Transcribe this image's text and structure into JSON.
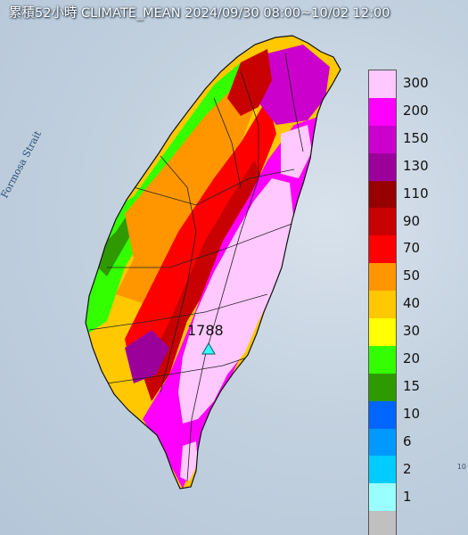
{
  "header": {
    "title": "累積52小時 CLIMATE_MEAN 2024/09/30 08:00~10/02 12:00"
  },
  "map_labels": {
    "strait": "Formosa Strait",
    "corner": "10"
  },
  "peak": {
    "value": "1788",
    "marker": "triangle-marker"
  },
  "legend": [
    {
      "label": "300",
      "color": "#ffc8ff"
    },
    {
      "label": "200",
      "color": "#ff00ff"
    },
    {
      "label": "150",
      "color": "#cc00cc"
    },
    {
      "label": "130",
      "color": "#9b009b"
    },
    {
      "label": "110",
      "color": "#960000"
    },
    {
      "label": "90",
      "color": "#c80000"
    },
    {
      "label": "70",
      "color": "#ff0000"
    },
    {
      "label": "50",
      "color": "#ff9600"
    },
    {
      "label": "40",
      "color": "#ffc800"
    },
    {
      "label": "30",
      "color": "#ffff00"
    },
    {
      "label": "20",
      "color": "#33ff00"
    },
    {
      "label": "15",
      "color": "#2e9a00"
    },
    {
      "label": "10",
      "color": "#0066ff"
    },
    {
      "label": "6",
      "color": "#0099ff"
    },
    {
      "label": "2",
      "color": "#00ccff"
    },
    {
      "label": "1",
      "color": "#99ffff"
    },
    {
      "label": "",
      "color": "#c0c0c0"
    }
  ]
}
